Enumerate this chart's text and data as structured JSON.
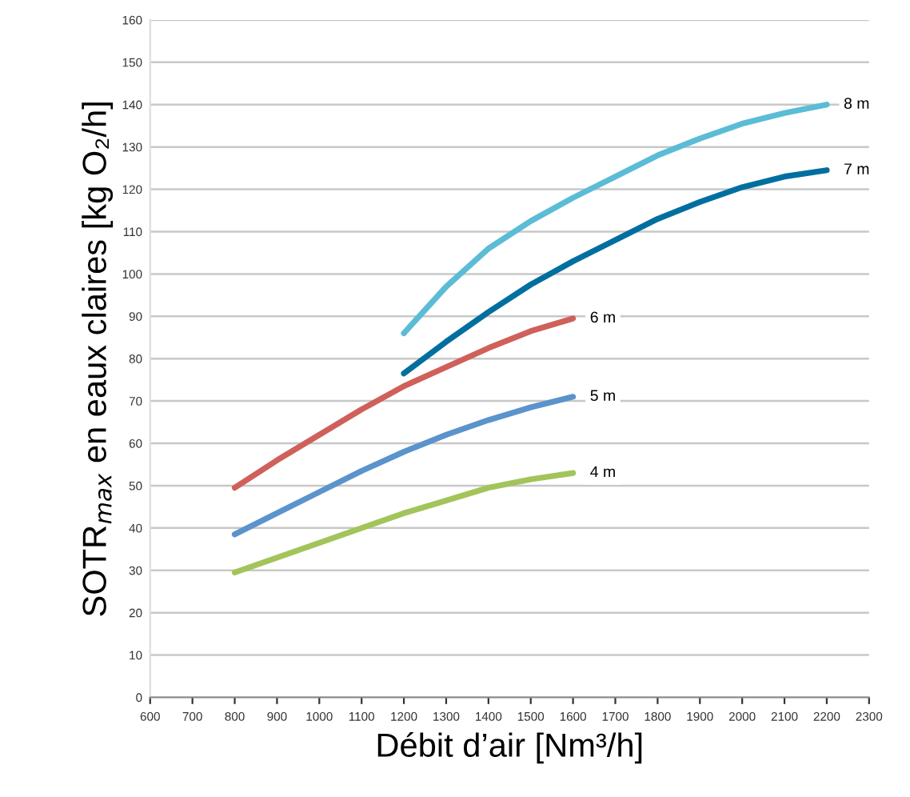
{
  "chart_data": {
    "type": "line",
    "xlabel": "Débit d’air [Nm³/h]",
    "ylabel": "SOTR$_{max}$ en eaux claires [kg O₂/h]",
    "xlim": [
      600,
      2300
    ],
    "xticks": [
      600,
      700,
      800,
      900,
      1000,
      1100,
      1200,
      1300,
      1400,
      1500,
      1600,
      1700,
      1800,
      1900,
      2000,
      2100,
      2200,
      2300
    ],
    "ylim": [
      0,
      160
    ],
    "yticks": [
      0,
      10,
      20,
      30,
      40,
      50,
      60,
      70,
      80,
      90,
      100,
      110,
      120,
      130,
      140,
      150,
      160
    ],
    "grid": "y",
    "legend": false,
    "marker": "none",
    "line_style": "solid",
    "series": [
      {
        "name": "8 m",
        "color": "#5bbcd6",
        "x": [
          1200,
          1300,
          1400,
          1500,
          1600,
          1700,
          1800,
          1900,
          2000,
          2100,
          2200
        ],
        "values": [
          86,
          97,
          106,
          112.5,
          118,
          123,
          128,
          132,
          135.5,
          138,
          140
        ]
      },
      {
        "name": "7 m",
        "color": "#006fa0",
        "x": [
          1200,
          1300,
          1400,
          1500,
          1600,
          1700,
          1800,
          1900,
          2000,
          2100,
          2200
        ],
        "values": [
          76.5,
          84,
          91,
          97.5,
          103,
          108,
          113,
          117,
          120.5,
          123,
          124.5
        ]
      },
      {
        "name": "6 m",
        "color": "#d0605a",
        "x": [
          800,
          900,
          1000,
          1100,
          1200,
          1300,
          1400,
          1500,
          1600
        ],
        "values": [
          49.5,
          56,
          62,
          68,
          73.5,
          78,
          82.5,
          86.5,
          89.5
        ]
      },
      {
        "name": "5 m",
        "color": "#5b93cc",
        "x": [
          800,
          900,
          1000,
          1100,
          1200,
          1300,
          1400,
          1500,
          1600
        ],
        "values": [
          38.5,
          43.5,
          48.5,
          53.5,
          58,
          62,
          65.5,
          68.5,
          71
        ]
      },
      {
        "name": "4 m",
        "color": "#a3c45a",
        "x": [
          800,
          900,
          1000,
          1100,
          1200,
          1300,
          1400,
          1500,
          1600
        ],
        "values": [
          29.5,
          33,
          36.5,
          40,
          43.5,
          46.5,
          49.5,
          51.5,
          53
        ]
      }
    ]
  }
}
